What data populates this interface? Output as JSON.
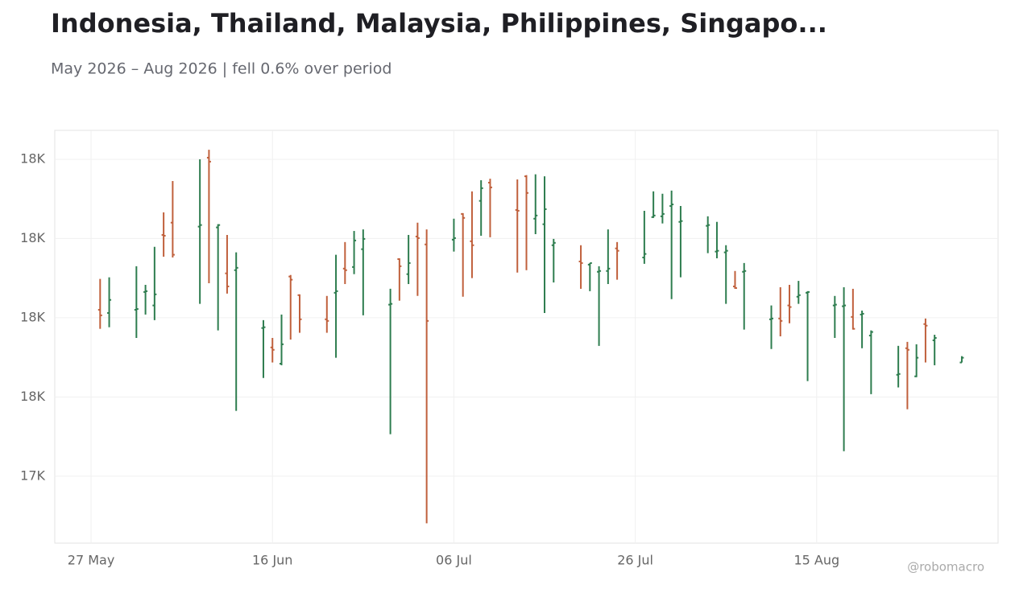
{
  "chart_data": {
    "type": "ohlc",
    "title": "Indonesia, Thailand, Malaysia, Philippines, Singapo...",
    "subtitle": "May 2026 – Aug 2026 | fell 0.6% over period",
    "credit": "@robomacro",
    "up_color": "#2e7d4f",
    "down_color": "#c0603c",
    "grid": true,
    "x": [
      "2026-05-28",
      "2026-05-29",
      "2026-06-01",
      "2026-06-02",
      "2026-06-03",
      "2026-06-04",
      "2026-06-05",
      "2026-06-08",
      "2026-06-09",
      "2026-06-10",
      "2026-06-11",
      "2026-06-12",
      "2026-06-15",
      "2026-06-16",
      "2026-06-17",
      "2026-06-18",
      "2026-06-19",
      "2026-06-22",
      "2026-06-23",
      "2026-06-24",
      "2026-06-25",
      "2026-06-26",
      "2026-06-29",
      "2026-06-30",
      "2026-07-01",
      "2026-07-02",
      "2026-07-03",
      "2026-07-06",
      "2026-07-07",
      "2026-07-08",
      "2026-07-09",
      "2026-07-10",
      "2026-07-13",
      "2026-07-14",
      "2026-07-15",
      "2026-07-16",
      "2026-07-17",
      "2026-07-20",
      "2026-07-21",
      "2026-07-22",
      "2026-07-23",
      "2026-07-24",
      "2026-07-27",
      "2026-07-28",
      "2026-07-29",
      "2026-07-30",
      "2026-07-31",
      "2026-08-03",
      "2026-08-04",
      "2026-08-05",
      "2026-08-06",
      "2026-08-07",
      "2026-08-10",
      "2026-08-11",
      "2026-08-12",
      "2026-08-13",
      "2026-08-14",
      "2026-08-17",
      "2026-08-18",
      "2026-08-19",
      "2026-08-20",
      "2026-08-21",
      "2026-08-24",
      "2026-08-25",
      "2026-08-26",
      "2026-08-27",
      "2026-08-28",
      "2026-08-31"
    ],
    "open": [
      17820,
      17812,
      17820,
      17865,
      17831,
      18009,
      18040,
      18030,
      18204,
      18028,
      17912,
      17920,
      17774,
      17725,
      17684,
      17904,
      17857,
      17796,
      17863,
      17924,
      17928,
      17973,
      17833,
      17948,
      17910,
      18005,
      17985,
      17997,
      18062,
      17993,
      18095,
      18141,
      18072,
      18157,
      18050,
      18036,
      17983,
      17942,
      17934,
      17916,
      17918,
      17975,
      17952,
      18054,
      18056,
      18082,
      18042,
      18032,
      17967,
      17965,
      17879,
      17916,
      17796,
      17798,
      17831,
      17853,
      17863,
      17831,
      17829,
      17802,
      17808,
      17755,
      17656,
      17723,
      17652,
      17784,
      17743,
      17687
    ],
    "high": [
      17898,
      17902,
      17930,
      17883,
      17979,
      18066,
      18145,
      18200,
      18224,
      18036,
      18009,
      17965,
      17794,
      17749,
      17808,
      17908,
      17859,
      17855,
      17959,
      17991,
      18019,
      18023,
      17873,
      17950,
      18009,
      18040,
      18023,
      18050,
      18064,
      18119,
      18147,
      18151,
      18149,
      18160,
      18162,
      18157,
      17999,
      17983,
      17938,
      17930,
      18023,
      17991,
      18070,
      18119,
      18113,
      18121,
      18082,
      18056,
      18042,
      17983,
      17918,
      17938,
      17831,
      17877,
      17883,
      17893,
      17867,
      17855,
      17877,
      17873,
      17818,
      17768,
      17729,
      17739,
      17733,
      17798,
      17757,
      17703
    ],
    "low": [
      17772,
      17776,
      17749,
      17808,
      17794,
      17954,
      17952,
      17835,
      17887,
      17768,
      17861,
      17565,
      17648,
      17687,
      17680,
      17745,
      17762,
      17762,
      17699,
      17885,
      17910,
      17806,
      17506,
      17843,
      17885,
      17855,
      17281,
      17967,
      17853,
      17900,
      18007,
      18003,
      17914,
      17920,
      18011,
      17812,
      17889,
      17873,
      17867,
      17729,
      17885,
      17896,
      17936,
      18052,
      18038,
      17847,
      17902,
      17963,
      17950,
      17835,
      17873,
      17770,
      17721,
      17753,
      17786,
      17835,
      17640,
      17749,
      17463,
      17770,
      17723,
      17607,
      17624,
      17569,
      17650,
      17687,
      17680,
      17687
    ],
    "close": [
      17806,
      17845,
      17822,
      17867,
      17859,
      18007,
      17959,
      18034,
      18194,
      18034,
      17879,
      17926,
      17776,
      17719,
      17733,
      17896,
      17796,
      17792,
      17867,
      17920,
      17995,
      17999,
      17835,
      17930,
      17938,
      18001,
      17792,
      18001,
      18052,
      17983,
      18127,
      18129,
      18070,
      18115,
      18058,
      18074,
      17989,
      17938,
      17938,
      17918,
      17924,
      17969,
      17961,
      18058,
      18062,
      18086,
      18044,
      18034,
      17969,
      17969,
      17875,
      17918,
      17798,
      17792,
      17827,
      17857,
      17865,
      17833,
      17831,
      17772,
      17810,
      17764,
      17658,
      17719,
      17699,
      17780,
      17749,
      17699
    ],
    "xlim": [
      "2026-05-23",
      "2026-09-04"
    ],
    "xticks": [
      {
        "value": "2026-05-27",
        "label": "27 May"
      },
      {
        "value": "2026-06-16",
        "label": "16 Jun"
      },
      {
        "value": "2026-07-06",
        "label": "06 Jul"
      },
      {
        "value": "2026-07-26",
        "label": "26 Jul"
      },
      {
        "value": "2026-08-15",
        "label": "15 Aug"
      }
    ],
    "ylim": [
      17231,
      18273
    ],
    "yticks": [
      {
        "value": 17400,
        "label": "17K"
      },
      {
        "value": 17600,
        "label": "18K"
      },
      {
        "value": 17800,
        "label": "18K"
      },
      {
        "value": 18000,
        "label": "18K"
      },
      {
        "value": 18200,
        "label": "18K"
      }
    ]
  }
}
